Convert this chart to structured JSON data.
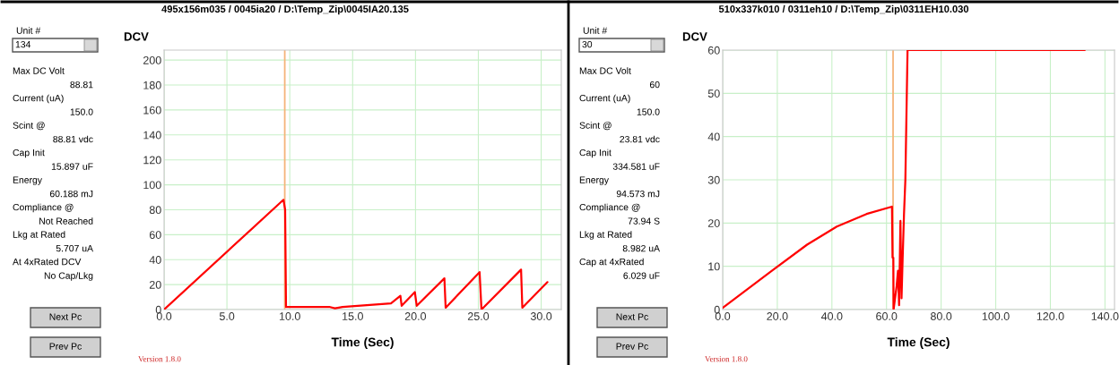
{
  "chart_data": [
    {
      "type": "line",
      "title": "495x156m035 / 0045ia20 / D:\\Temp_Zip\\0045IA20.135",
      "xlabel": "Time (Sec)",
      "ylabel": "DCV",
      "series": [
        {
          "color": "#ff0000",
          "x": [
            0,
            9.5,
            9.63,
            9.7,
            13.2,
            13.6,
            14.2,
            18.05,
            18.8,
            18.9,
            19.95,
            20.1,
            22.3,
            22.4,
            25.1,
            25.25,
            28.4,
            28.5,
            30.5
          ],
          "values": [
            0,
            88,
            80,
            2,
            2,
            1,
            2,
            5,
            11,
            3,
            14,
            3,
            25,
            1.5,
            30,
            0,
            32,
            1.5,
            22
          ]
        }
      ],
      "xlim": [
        0,
        31.6
      ],
      "ylim": [
        0,
        208
      ],
      "xticks": [
        {
          "value": 0,
          "label": "0.0"
        },
        {
          "value": 5,
          "label": "5.0"
        },
        {
          "value": 10,
          "label": "10.0"
        },
        {
          "value": 15,
          "label": "15.0"
        },
        {
          "value": 20,
          "label": "20.0"
        },
        {
          "value": 25,
          "label": "25.0"
        },
        {
          "value": 30,
          "label": "30.0"
        }
      ],
      "yticks": [
        0,
        20,
        40,
        60,
        80,
        100,
        120,
        140,
        160,
        180,
        200
      ],
      "grid": true,
      "legend": false,
      "ref_lines": [
        {
          "axis": "x",
          "value": 9.6,
          "color": "#f5b47a"
        }
      ],
      "annotations": [
        "Unit #",
        "134",
        "Max DC Volt",
        "88.81",
        "Current (uA)",
        "150.0",
        "Scint @",
        "88.81 vdc",
        "Cap Init",
        "15.897 uF",
        "Energy",
        "60.188 mJ",
        "Compliance @",
        "Not Reached",
        "Lkg at Rated",
        "5.707 uA",
        "At 4xRated DCV",
        "No Cap/Lkg",
        "Next Pc",
        "Prev Pc",
        "Version 1.8.0"
      ]
    },
    {
      "type": "line",
      "title": "510x337k010 / 0311eh10 / D:\\Temp_Zip\\0311EH10.030",
      "xlabel": "Time (Sec)",
      "ylabel": "DCV",
      "series": [
        {
          "color": "#ff0000",
          "x": [
            0,
            17.7,
            30.9,
            41.8,
            52.7,
            62,
            62.2,
            62.5,
            62.6,
            63.7,
            64.2,
            64.6,
            65.1,
            65.5,
            65.9,
            66.4,
            66.9,
            67.7,
            132.6
          ],
          "values": [
            0.4,
            8.8,
            15,
            19.2,
            22.1,
            23.8,
            12,
            12,
            0,
            5.4,
            9,
            1,
            20.5,
            2.6,
            11.6,
            22,
            30,
            60,
            60
          ]
        }
      ],
      "xlim": [
        0,
        143.5
      ],
      "ylim": [
        0,
        60
      ],
      "xticks": [
        {
          "value": 0,
          "label": "0.0"
        },
        {
          "value": 20,
          "label": "20.0"
        },
        {
          "value": 40,
          "label": "40.0"
        },
        {
          "value": 60,
          "label": "60.0"
        },
        {
          "value": 80,
          "label": "80.0"
        },
        {
          "value": 100,
          "label": "100.0"
        },
        {
          "value": 120,
          "label": "120.0"
        },
        {
          "value": 140,
          "label": "140.0"
        }
      ],
      "yticks": [
        0,
        10,
        20,
        30,
        40,
        50,
        60
      ],
      "grid": true,
      "legend": false,
      "ref_lines": [
        {
          "axis": "x",
          "value": 62.4,
          "color": "#f5b47a"
        }
      ],
      "annotations": [
        "Unit #",
        "30",
        "Max DC Volt",
        "60",
        "Current (uA)",
        "150.0",
        "Scint @",
        "23.81 vdc",
        "Cap Init",
        "334.581 uF",
        "Energy",
        "94.573 mJ",
        "Compliance @",
        "73.94 S",
        "Lkg at Rated",
        "8.982 uA",
        "Cap at 4xRated",
        "6.029 uF",
        "Next Pc",
        "Prev Pc",
        "Version 1.8.0"
      ]
    }
  ]
}
